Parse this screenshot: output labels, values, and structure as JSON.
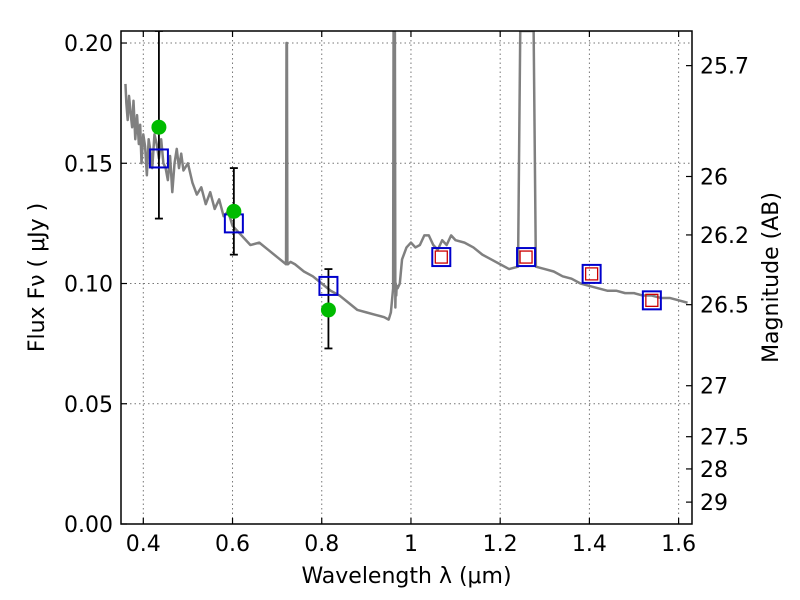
{
  "chart_data": {
    "type": "scatter",
    "xlabel": "Wavelength  λ (μm)",
    "ylabel": "Flux  Fν  ( μJy )",
    "y2label": "Magnitude (AB)",
    "xlim": [
      0.35,
      1.63
    ],
    "ylim": [
      0.0,
      0.205
    ],
    "grid": true,
    "x_ticks": [
      0.4,
      0.6,
      0.8,
      1.0,
      1.2,
      1.4,
      1.6
    ],
    "x_tick_labels": [
      "0.4",
      "0.6",
      "0.8",
      "1",
      "1.2",
      "1.4",
      "1.6"
    ],
    "y_ticks": [
      0.0,
      0.05,
      0.1,
      0.15,
      0.2
    ],
    "y_tick_labels": [
      "0.00",
      "0.05",
      "0.10",
      "0.15",
      "0.20"
    ],
    "y2_ticks": [
      {
        "label": "25.7",
        "flux": 0.1906
      },
      {
        "label": "26",
        "flux": 0.1445
      },
      {
        "label": "26.2",
        "flux": 0.1202
      },
      {
        "label": "26.5",
        "flux": 0.0912
      },
      {
        "label": "27",
        "flux": 0.0575
      },
      {
        "label": "27.5",
        "flux": 0.0363
      },
      {
        "label": "28",
        "flux": 0.0229
      },
      {
        "label": "29",
        "flux": 0.0091
      }
    ],
    "colors": {
      "sed": "#808080",
      "observed": "#00bb00",
      "model_box": "#0000cc",
      "model_box_inner": "#cc0000",
      "errorbar": "#000000",
      "grid": "#777777"
    },
    "series": [
      {
        "kind": "line",
        "x": [
          0.36,
          0.362,
          0.365,
          0.368,
          0.372,
          0.375,
          0.378,
          0.382,
          0.386,
          0.39,
          0.393,
          0.396,
          0.4,
          0.404,
          0.408,
          0.412,
          0.416,
          0.42,
          0.425,
          0.43,
          0.435,
          0.44,
          0.445,
          0.45,
          0.455,
          0.46,
          0.465,
          0.47,
          0.475,
          0.48,
          0.485,
          0.49,
          0.5,
          0.51,
          0.52,
          0.53,
          0.54,
          0.55,
          0.56,
          0.57,
          0.58,
          0.59,
          0.6,
          0.62,
          0.64,
          0.66,
          0.68,
          0.7,
          0.72,
          0.721,
          0.722,
          0.723,
          0.724,
          0.73,
          0.74,
          0.76,
          0.78,
          0.8,
          0.82,
          0.84,
          0.86,
          0.88,
          0.9,
          0.92,
          0.94,
          0.95,
          0.955,
          0.96,
          0.961,
          0.962,
          0.963,
          0.964,
          0.965,
          0.966,
          0.967,
          0.968,
          0.97,
          0.975,
          0.98,
          0.99,
          1.0,
          1.01,
          1.02,
          1.03,
          1.04,
          1.05,
          1.06,
          1.07,
          1.08,
          1.09,
          1.1,
          1.12,
          1.14,
          1.16,
          1.18,
          1.2,
          1.22,
          1.24,
          1.245,
          1.25,
          1.27,
          1.275,
          1.28,
          1.3,
          1.32,
          1.34,
          1.36,
          1.38,
          1.4,
          1.42,
          1.44,
          1.46,
          1.48,
          1.5,
          1.52,
          1.54,
          1.56,
          1.58,
          1.6,
          1.62
        ],
        "y": [
          0.183,
          0.175,
          0.168,
          0.178,
          0.17,
          0.165,
          0.176,
          0.16,
          0.17,
          0.158,
          0.166,
          0.15,
          0.162,
          0.157,
          0.145,
          0.16,
          0.155,
          0.148,
          0.162,
          0.158,
          0.152,
          0.16,
          0.15,
          0.148,
          0.143,
          0.153,
          0.138,
          0.15,
          0.156,
          0.148,
          0.154,
          0.147,
          0.15,
          0.142,
          0.137,
          0.14,
          0.133,
          0.138,
          0.131,
          0.135,
          0.128,
          0.13,
          0.124,
          0.12,
          0.116,
          0.117,
          0.114,
          0.111,
          0.108,
          0.2,
          0.2,
          0.108,
          0.108,
          0.109,
          0.108,
          0.105,
          0.103,
          0.1,
          0.097,
          0.095,
          0.092,
          0.089,
          0.088,
          0.087,
          0.086,
          0.085,
          0.088,
          0.098,
          0.205,
          0.205,
          0.205,
          0.205,
          0.09,
          0.1,
          0.095,
          0.099,
          0.098,
          0.1,
          0.11,
          0.115,
          0.117,
          0.115,
          0.116,
          0.12,
          0.12,
          0.116,
          0.114,
          0.118,
          0.116,
          0.12,
          0.118,
          0.117,
          0.115,
          0.112,
          0.11,
          0.108,
          0.106,
          0.107,
          0.205,
          0.205,
          0.205,
          0.205,
          0.107,
          0.106,
          0.105,
          0.103,
          0.102,
          0.1,
          0.099,
          0.098,
          0.097,
          0.097,
          0.096,
          0.096,
          0.095,
          0.095,
          0.094,
          0.094,
          0.093,
          0.092
        ]
      },
      {
        "kind": "errorbar_points",
        "x": [
          0.435,
          0.603,
          0.815
        ],
        "y": [
          0.165,
          0.13,
          0.089
        ],
        "yerr_low": [
          0.127,
          0.112,
          0.073
        ],
        "yerr_high": [
          0.205,
          0.148,
          0.106
        ]
      },
      {
        "kind": "model_boxes",
        "x": [
          0.435,
          0.603,
          0.815,
          1.068,
          1.258,
          1.405,
          1.54
        ],
        "y": [
          0.152,
          0.125,
          0.099,
          0.111,
          0.111,
          0.104,
          0.093
        ],
        "inner": [
          false,
          false,
          false,
          true,
          true,
          true,
          true
        ]
      }
    ]
  }
}
